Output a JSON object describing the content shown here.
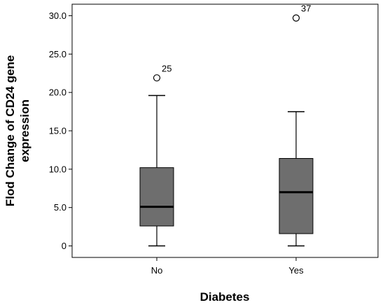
{
  "chart_data": {
    "type": "boxplot",
    "xlabel": "Diabetes",
    "ylabel_lines": [
      "Flod Change of CD24 gene",
      "expression"
    ],
    "ylim": [
      -1.5,
      31.5
    ],
    "yticks": [
      0,
      5,
      10,
      15,
      20,
      25,
      30
    ],
    "ytick_labels": [
      "0",
      "5.0",
      "10.0",
      "15.0",
      "20.0",
      "25.0",
      "30.0"
    ],
    "categories": [
      "No",
      "Yes"
    ],
    "boxes": [
      {
        "category": "No",
        "whisker_low": 0.0,
        "q1": 2.6,
        "median": 5.1,
        "q3": 10.2,
        "whisker_high": 19.6,
        "outliers": [
          {
            "value": 21.9,
            "label": "25"
          }
        ]
      },
      {
        "category": "Yes",
        "whisker_low": 0.0,
        "q1": 1.6,
        "median": 7.0,
        "q3": 11.4,
        "whisker_high": 17.5,
        "outliers": [
          {
            "value": 29.7,
            "label": "37"
          }
        ]
      }
    ],
    "box_color": "#6e6e6e",
    "grid": false,
    "legend": "none"
  }
}
